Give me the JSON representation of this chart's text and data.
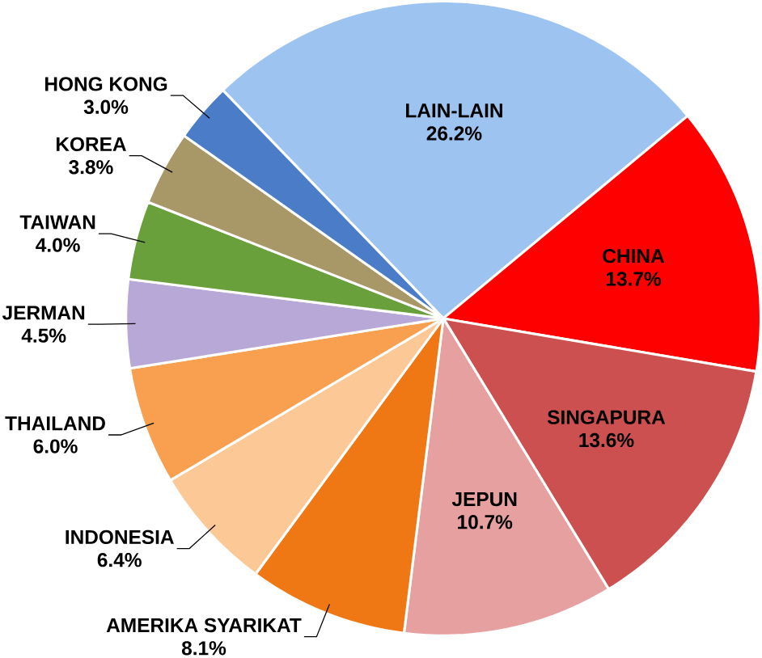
{
  "chart_data": {
    "type": "pie",
    "categories": [
      "LAIN-LAIN",
      "CHINA",
      "SINGAPURA",
      "JEPUN",
      "AMERIKA SYARIKAT",
      "INDONESIA",
      "THAILAND",
      "JERMAN",
      "TAIWAN",
      "KOREA",
      "HONG KONG"
    ],
    "values": [
      26.2,
      13.7,
      13.6,
      10.7,
      8.1,
      6.4,
      6.0,
      4.5,
      4.0,
      3.8,
      3.0
    ],
    "value_labels": [
      "26.2%",
      "13.7%",
      "13.6%",
      "10.7%",
      "8.1%",
      "6.4%",
      "6.0%",
      "4.5%",
      "4.0%",
      "3.8%",
      "3.0%"
    ],
    "colors": [
      "#9dc3f0",
      "#ff0000",
      "#cd5050",
      "#e6a0a0",
      "#f07814",
      "#fcc896",
      "#f8a050",
      "#b8a8d8",
      "#6aa03c",
      "#a89868",
      "#4a7cc8"
    ]
  }
}
